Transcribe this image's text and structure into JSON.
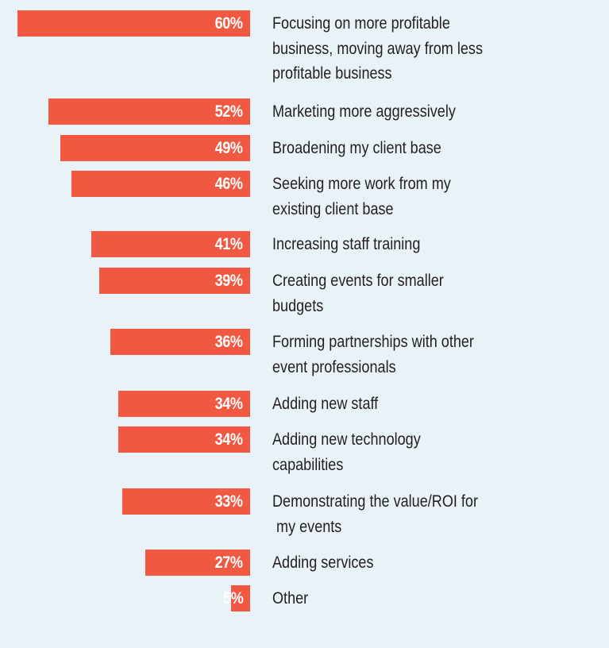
{
  "chart_data": {
    "type": "bar",
    "orientation": "horizontal",
    "title": "",
    "xlabel": "",
    "ylabel": "",
    "xlim": [
      0,
      60
    ],
    "grid": false,
    "legend": "none",
    "bar_color": "#f15842",
    "background_color": "#e9f2f6",
    "categories": [
      "Focusing on more profitable\nbusiness, moving away from less\nprofitable business",
      "Marketing more aggressively",
      "Broadening my client base",
      "Seeking more work from my\nexisting client base",
      "Increasing staff training",
      "Creating events for smaller\nbudgets",
      "Forming partnerships with other\nevent professionals",
      "Adding new staff",
      "Adding new technology\ncapabilities",
      "Demonstrating the value/ROI for\n my events",
      "Adding services",
      "Other"
    ],
    "values": [
      60,
      52,
      49,
      46,
      41,
      39,
      36,
      34,
      34,
      33,
      27,
      5
    ],
    "value_labels": [
      "60%",
      "52%",
      "49%",
      "46%",
      "41%",
      "39%",
      "36%",
      "34%",
      "34%",
      "33%",
      "27%",
      "5%"
    ]
  }
}
